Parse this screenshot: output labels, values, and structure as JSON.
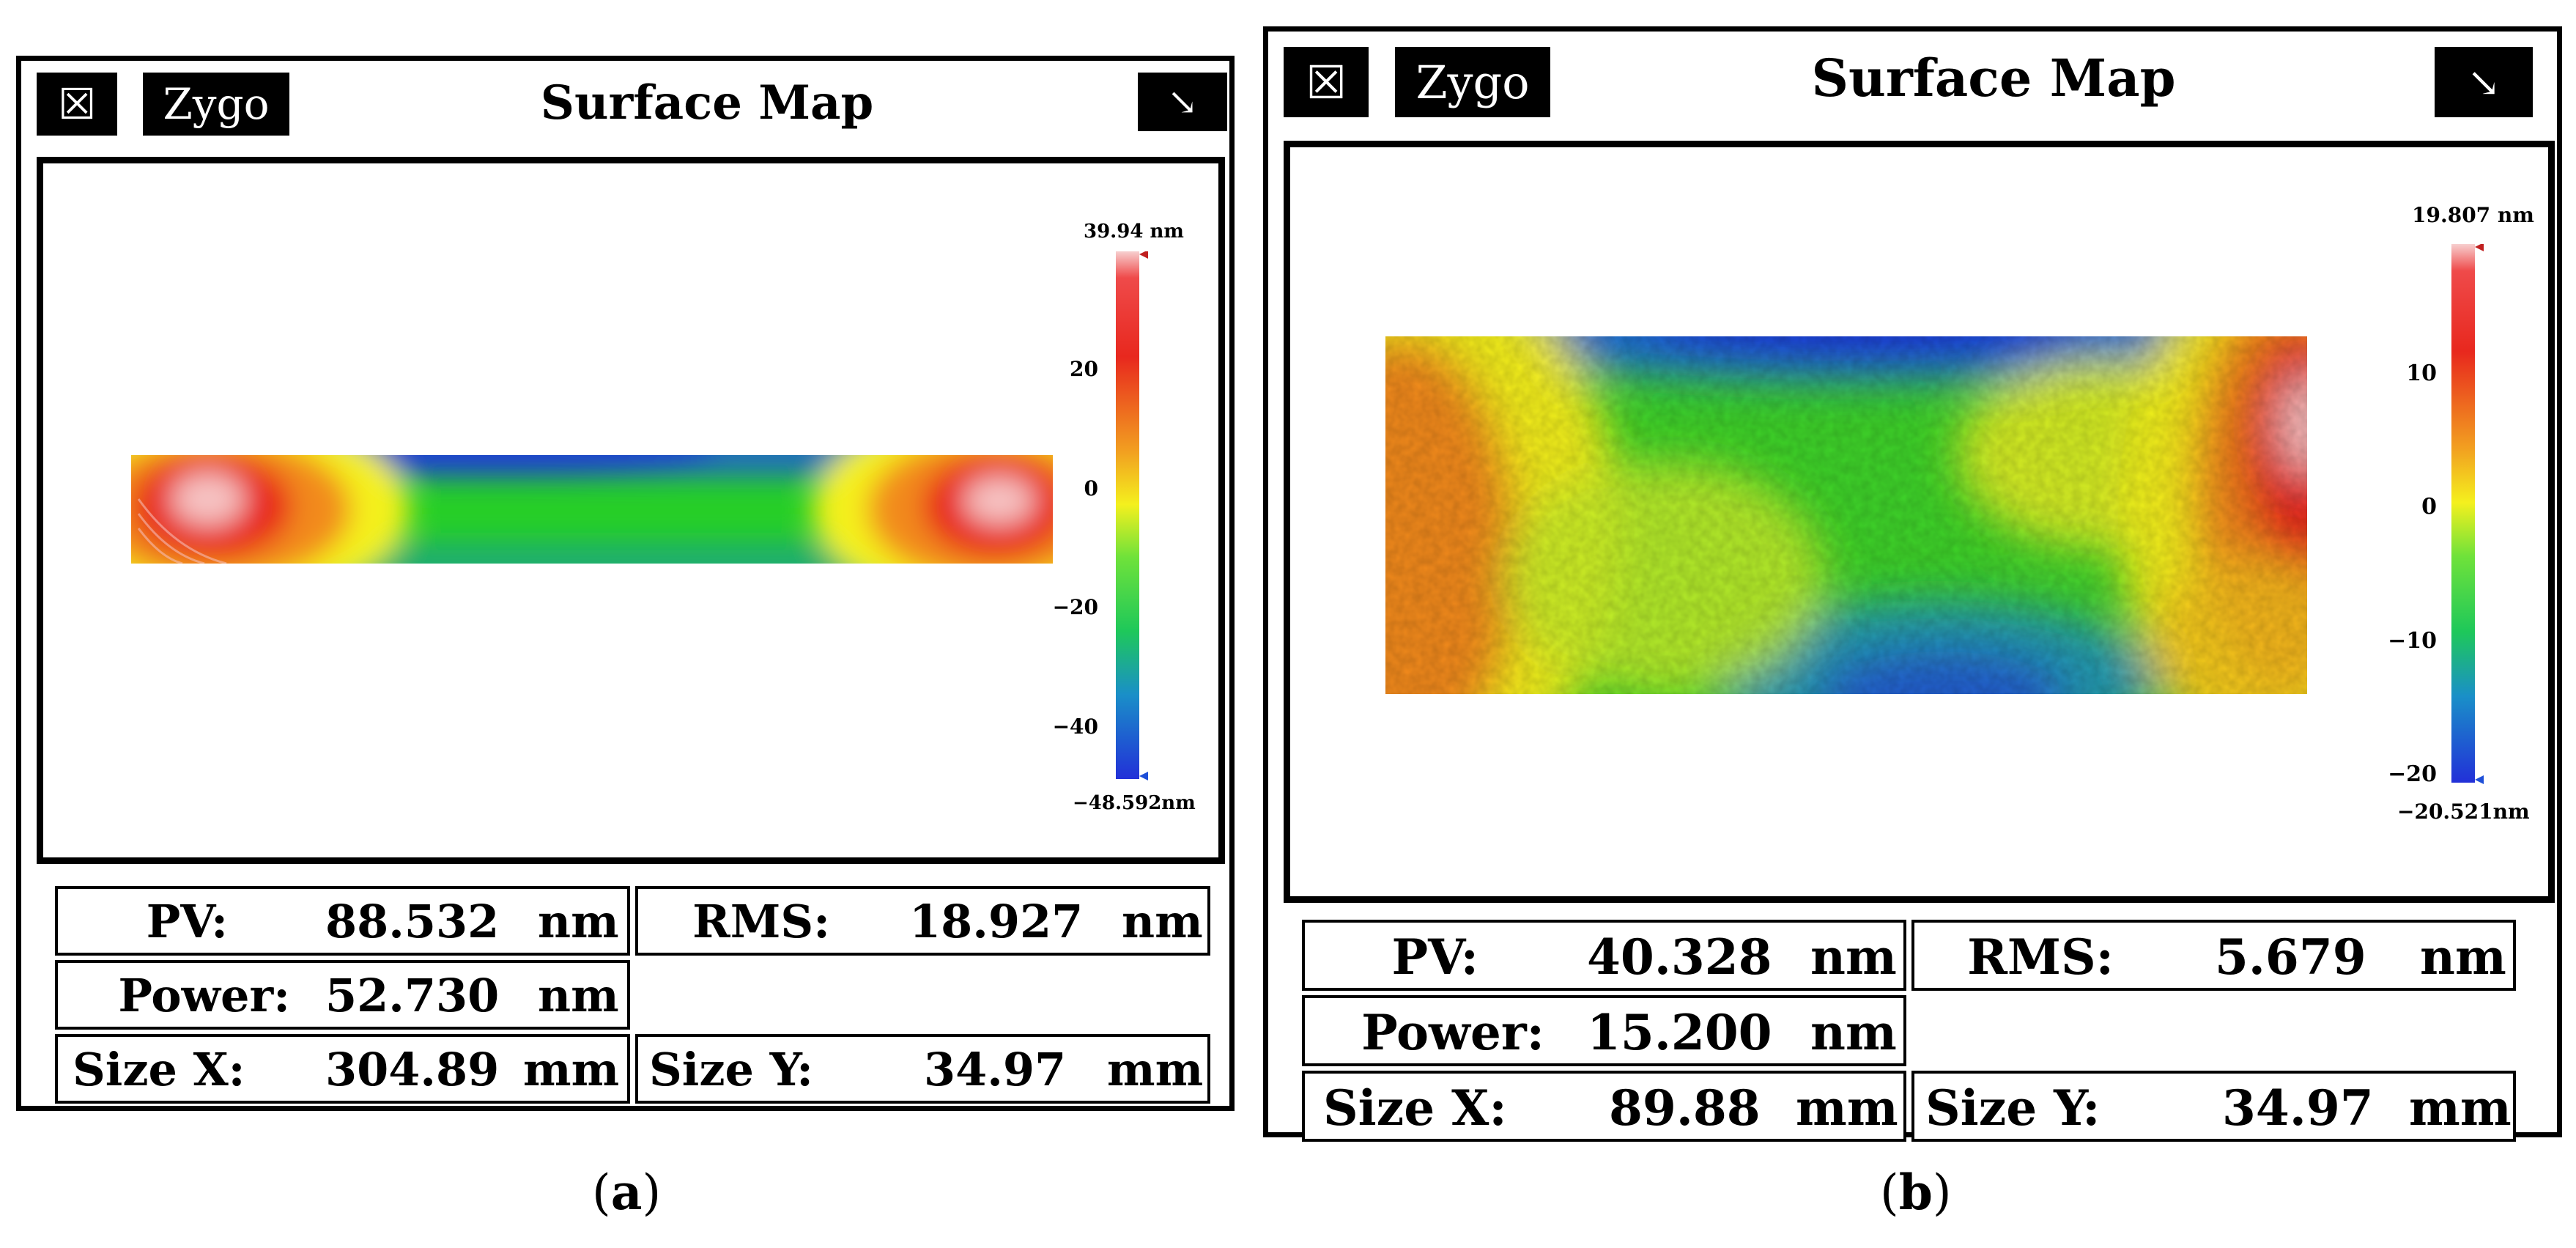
{
  "panels": [
    {
      "close_icon": "☒",
      "brand": "Zygo",
      "title": "Surface Map",
      "expand_icon": "↘",
      "colorbar": {
        "max_label": "39.94 nm",
        "min_label": "−48.592nm",
        "ticks": [
          "20",
          "0",
          "−20",
          "−40"
        ],
        "tick_values": [
          20,
          0,
          -20,
          -40
        ],
        "range": [
          -48.592,
          39.94
        ]
      },
      "stats": {
        "pv_label": "PV:",
        "pv_value": "88.532",
        "pv_unit": "nm",
        "rms_label": "RMS:",
        "rms_value": "18.927",
        "rms_unit": "nm",
        "power_label": "Power:",
        "power_value": "52.730",
        "power_unit": "nm",
        "sizex_label": "Size X:",
        "sizex_value": "304.89",
        "sizex_unit": "mm",
        "sizey_label": "Size Y:",
        "sizey_value": "34.97",
        "sizey_unit": "mm"
      },
      "caption": "a"
    },
    {
      "close_icon": "☒",
      "brand": "Zygo",
      "title": "Surface Map",
      "expand_icon": "↘",
      "colorbar": {
        "max_label": "19.807 nm",
        "min_label": "−20.521nm",
        "ticks": [
          "10",
          "0",
          "−10",
          "−20"
        ],
        "tick_values": [
          10,
          0,
          -10,
          -20
        ],
        "range": [
          -20.521,
          19.807
        ]
      },
      "stats": {
        "pv_label": "PV:",
        "pv_value": "40.328",
        "pv_unit": "nm",
        "rms_label": "RMS:",
        "rms_value": "5.679",
        "rms_unit": "nm",
        "power_label": "Power:",
        "power_value": "15.200",
        "power_unit": "nm",
        "sizex_label": "Size X:",
        "sizex_value": "89.88",
        "sizex_unit": "mm",
        "sizey_label": "Size Y:",
        "sizey_value": "34.97",
        "sizey_unit": "mm"
      },
      "caption": "b"
    }
  ],
  "colors": {
    "red": "#e8281e",
    "orange": "#f28a1e",
    "yellow": "#f4f01e",
    "green": "#27cf28",
    "blue": "#1f2fd8",
    "hot": "#f6c3c3"
  }
}
